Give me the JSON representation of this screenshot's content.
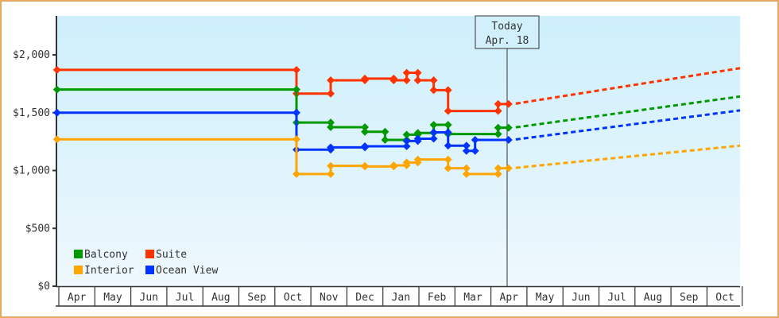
{
  "chart_data": {
    "type": "line",
    "title": "",
    "xlabel": "",
    "ylabel": "",
    "ylim": [
      0,
      2330
    ],
    "yticks": [
      {
        "value": 0,
        "label": "$0"
      },
      {
        "value": 500,
        "label": "$500"
      },
      {
        "value": 1000,
        "label": "$1,000"
      },
      {
        "value": 1500,
        "label": "$1,500"
      },
      {
        "value": 2000,
        "label": "$2,000"
      }
    ],
    "xticks": [
      "Apr",
      "May",
      "Jun",
      "Jul",
      "Aug",
      "Sep",
      "Oct",
      "Nov",
      "Dec",
      "Jan",
      "Feb",
      "Mar",
      "Apr",
      "May",
      "Jun",
      "Jul",
      "Aug",
      "Sep",
      "Oct"
    ],
    "grid": false,
    "legend_position": "bottom-left inside",
    "annotation": {
      "line1": "Today",
      "line2": "Apr. 18",
      "x_month_index": 12.45
    },
    "series": [
      {
        "name": "Suite",
        "color": "#ff3300",
        "step": true,
        "points": [
          [
            -0.05,
            1870
          ],
          [
            6.6,
            1870
          ],
          [
            6.6,
            1665
          ],
          [
            7.55,
            1665
          ],
          [
            7.55,
            1780
          ],
          [
            8.5,
            1780
          ],
          [
            8.5,
            1795
          ],
          [
            9.3,
            1795
          ],
          [
            9.3,
            1780
          ],
          [
            9.66,
            1780
          ],
          [
            9.66,
            1845
          ],
          [
            9.97,
            1845
          ],
          [
            9.97,
            1780
          ],
          [
            10.41,
            1780
          ],
          [
            10.41,
            1695
          ],
          [
            10.81,
            1695
          ],
          [
            10.81,
            1515
          ],
          [
            12.2,
            1515
          ],
          [
            12.2,
            1575
          ],
          [
            12.49,
            1575
          ]
        ],
        "forecast": [
          [
            12.49,
            1575
          ],
          [
            18.95,
            1885
          ]
        ]
      },
      {
        "name": "Balcony",
        "color": "#009900",
        "step": true,
        "points": [
          [
            -0.05,
            1700
          ],
          [
            6.6,
            1700
          ],
          [
            6.6,
            1415
          ],
          [
            7.55,
            1415
          ],
          [
            7.55,
            1375
          ],
          [
            8.5,
            1375
          ],
          [
            8.5,
            1335
          ],
          [
            9.06,
            1335
          ],
          [
            9.06,
            1265
          ],
          [
            9.66,
            1265
          ],
          [
            9.66,
            1310
          ],
          [
            9.97,
            1310
          ],
          [
            9.97,
            1325
          ],
          [
            10.41,
            1325
          ],
          [
            10.41,
            1395
          ],
          [
            10.81,
            1395
          ],
          [
            10.81,
            1315
          ],
          [
            12.2,
            1315
          ],
          [
            12.2,
            1370
          ],
          [
            12.49,
            1370
          ]
        ],
        "forecast": [
          [
            12.49,
            1370
          ],
          [
            18.95,
            1640
          ]
        ]
      },
      {
        "name": "Ocean View",
        "color": "#0033ff",
        "step": true,
        "points": [
          [
            -0.05,
            1500
          ],
          [
            6.6,
            1500
          ],
          [
            6.6,
            1180
          ],
          [
            7.55,
            1180
          ],
          [
            7.55,
            1200
          ],
          [
            8.5,
            1200
          ],
          [
            8.5,
            1210
          ],
          [
            9.66,
            1210
          ],
          [
            9.66,
            1255
          ],
          [
            9.97,
            1255
          ],
          [
            9.97,
            1275
          ],
          [
            10.41,
            1275
          ],
          [
            10.41,
            1330
          ],
          [
            10.81,
            1330
          ],
          [
            10.81,
            1215
          ],
          [
            11.32,
            1215
          ],
          [
            11.32,
            1170
          ],
          [
            11.56,
            1170
          ],
          [
            11.56,
            1265
          ],
          [
            12.49,
            1265
          ]
        ],
        "forecast": [
          [
            12.49,
            1265
          ],
          [
            18.95,
            1520
          ]
        ]
      },
      {
        "name": "Interior",
        "color": "#ffa500",
        "step": true,
        "points": [
          [
            -0.05,
            1270
          ],
          [
            6.6,
            1270
          ],
          [
            6.6,
            970
          ],
          [
            7.55,
            970
          ],
          [
            7.55,
            1040
          ],
          [
            8.5,
            1040
          ],
          [
            8.5,
            1035
          ],
          [
            9.3,
            1035
          ],
          [
            9.3,
            1045
          ],
          [
            9.66,
            1045
          ],
          [
            9.66,
            1070
          ],
          [
            9.97,
            1070
          ],
          [
            9.97,
            1095
          ],
          [
            10.81,
            1095
          ],
          [
            10.81,
            1020
          ],
          [
            11.32,
            1020
          ],
          [
            11.32,
            970
          ],
          [
            12.2,
            970
          ],
          [
            12.2,
            1020
          ],
          [
            12.49,
            1020
          ]
        ],
        "forecast": [
          [
            12.49,
            1020
          ],
          [
            18.95,
            1215
          ]
        ]
      }
    ]
  },
  "legend": {
    "items": [
      {
        "label": "Balcony",
        "color": "#009900"
      },
      {
        "label": "Suite",
        "color": "#ff3300"
      },
      {
        "label": "Interior",
        "color": "#ffa500"
      },
      {
        "label": "Ocean View",
        "color": "#0033ff"
      }
    ]
  },
  "today": {
    "line1": "Today",
    "line2": "Apr. 18"
  }
}
